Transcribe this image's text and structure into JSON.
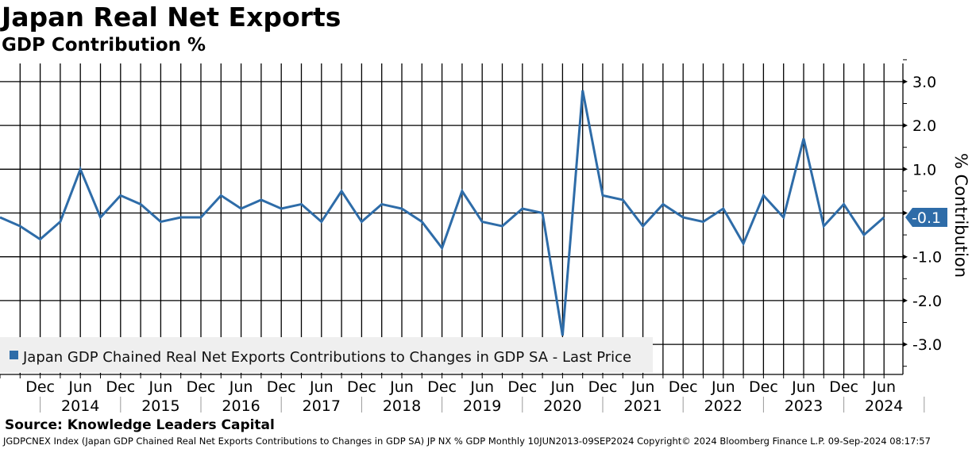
{
  "header": {
    "title": "Japan Real Net Exports",
    "subtitle": "GDP Contribution %"
  },
  "source": "Source: Knowledge Leaders Capital",
  "footer": "JGDPCNEX Index (Japan GDP Chained Real Net Exports Contributions to Changes in GDP SA) JP NX % GDP  Monthly 10JUN2013-09SEP2024   Copyright© 2024 Bloomberg Finance L.P.   09-Sep-2024 08:17:57",
  "chart_data": {
    "type": "line",
    "title": "Japan Real Net Exports",
    "ylabel": "% Contribution",
    "ylim": [
      -3.7,
      3.5
    ],
    "yticks": [
      3.0,
      2.0,
      1.0,
      0,
      -1.0,
      -2.0,
      -3.0
    ],
    "ytick_labels": [
      "3.0",
      "2.0",
      "1.0",
      "",
      "-1.0",
      "-2.0",
      "-3.0"
    ],
    "grid": true,
    "legend": {
      "position": "bottom-left",
      "entry": "Japan GDP Chained Real Net Exports Contributions to Changes in GDP SA - Last Price"
    },
    "last_value_label": "-0.1",
    "color": "#2e6ca8",
    "x_start": "Jun 2013",
    "x_frequency": "quarterly",
    "month_labels": [
      "Dec",
      "Jun",
      "Dec",
      "Jun",
      "Dec",
      "Jun",
      "Dec",
      "Jun",
      "Dec",
      "Jun",
      "Dec",
      "Jun",
      "Dec",
      "Jun",
      "Dec",
      "Jun",
      "Dec",
      "Jun",
      "Dec",
      "Jun",
      "Dec",
      "Jun"
    ],
    "year_labels": [
      "2014",
      "2015",
      "2016",
      "2017",
      "2018",
      "2019",
      "2020",
      "2021",
      "2022",
      "2023",
      "2024"
    ],
    "series": [
      {
        "name": "Japan GDP Chained Real Net Exports Contributions to Changes in GDP SA - Last Price",
        "values": [
          -0.1,
          -0.3,
          -0.6,
          -0.2,
          1.0,
          -0.1,
          0.4,
          0.2,
          -0.2,
          -0.1,
          -0.1,
          0.4,
          0.1,
          0.3,
          0.1,
          0.2,
          -0.2,
          0.5,
          -0.2,
          0.2,
          0.1,
          -0.2,
          -0.8,
          0.5,
          -0.2,
          -0.3,
          0.1,
          0.0,
          -2.8,
          2.8,
          0.4,
          0.3,
          -0.3,
          0.2,
          -0.1,
          -0.2,
          0.1,
          -0.7,
          0.4,
          -0.1,
          1.7,
          -0.3,
          0.2,
          -0.5,
          -0.1
        ]
      }
    ]
  }
}
